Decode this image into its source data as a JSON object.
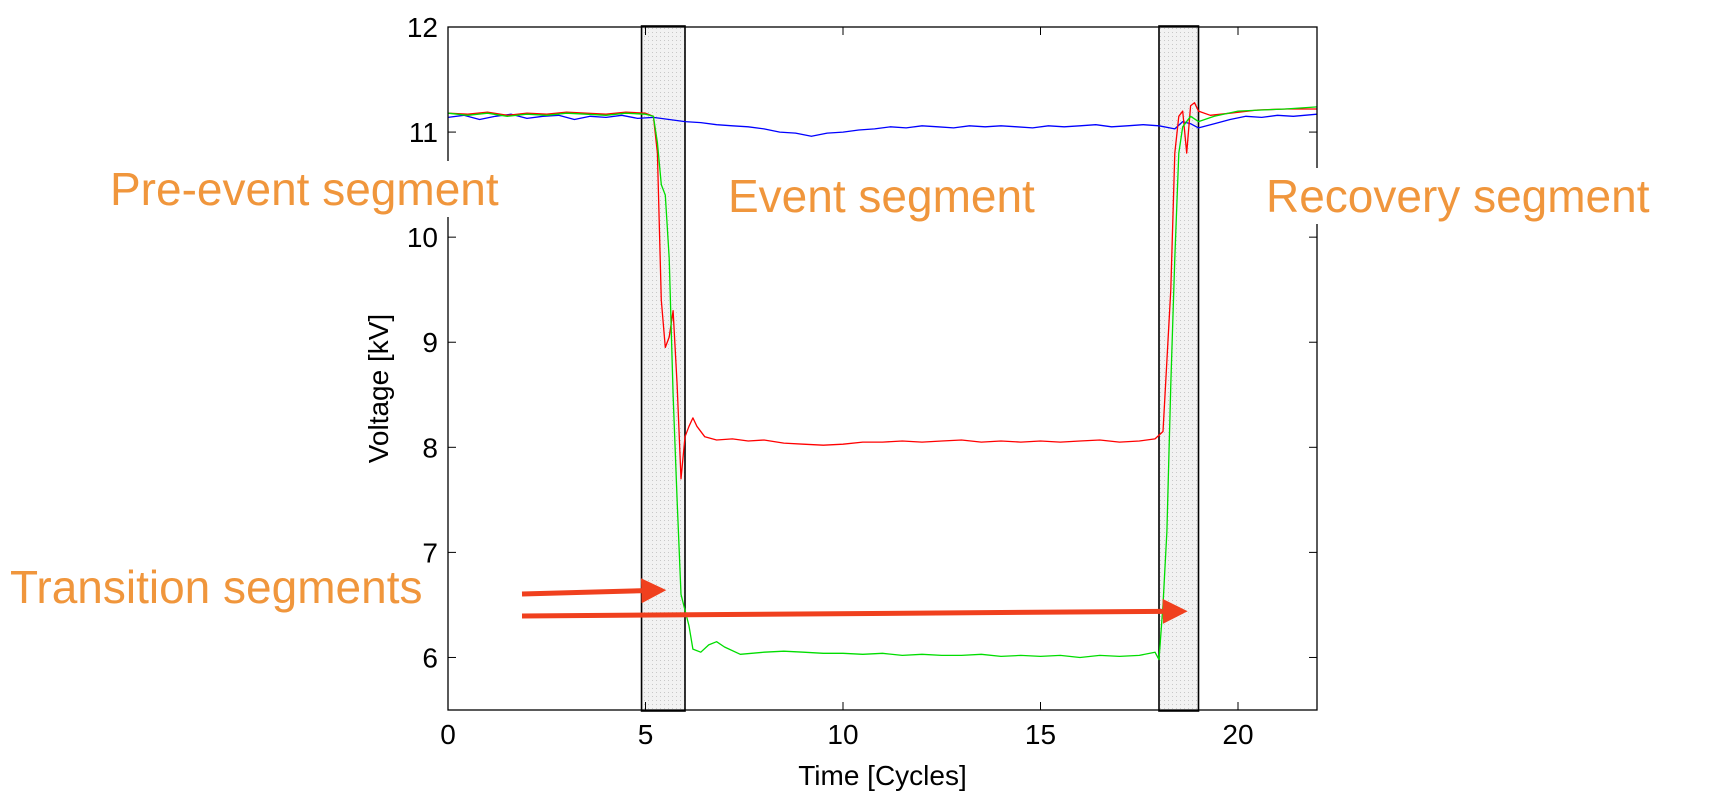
{
  "chart_data": {
    "type": "line",
    "xlabel": "Time [Cycles]",
    "ylabel": "Voltage [kV]",
    "xlim": [
      0,
      22
    ],
    "ylim": [
      5.5,
      12
    ],
    "xticks": [
      0,
      5,
      10,
      15,
      20
    ],
    "yticks": [
      6,
      7,
      8,
      9,
      10,
      11,
      12
    ],
    "grid": false,
    "legend": "none",
    "series": [
      {
        "color": "#0000ff",
        "points": [
          [
            0,
            11.14
          ],
          [
            0.4,
            11.16
          ],
          [
            0.8,
            11.12
          ],
          [
            1.2,
            11.15
          ],
          [
            1.6,
            11.17
          ],
          [
            2.0,
            11.13
          ],
          [
            2.4,
            11.15
          ],
          [
            2.8,
            11.16
          ],
          [
            3.2,
            11.12
          ],
          [
            3.6,
            11.15
          ],
          [
            4.0,
            11.14
          ],
          [
            4.4,
            11.16
          ],
          [
            4.8,
            11.13
          ],
          [
            5.2,
            11.14
          ],
          [
            5.6,
            11.12
          ],
          [
            6.0,
            11.1
          ],
          [
            6.4,
            11.09
          ],
          [
            6.8,
            11.07
          ],
          [
            7.2,
            11.06
          ],
          [
            7.6,
            11.05
          ],
          [
            8.0,
            11.03
          ],
          [
            8.4,
            11.0
          ],
          [
            8.8,
            10.99
          ],
          [
            9.2,
            10.96
          ],
          [
            9.6,
            10.99
          ],
          [
            10.0,
            11.0
          ],
          [
            10.4,
            11.02
          ],
          [
            10.8,
            11.03
          ],
          [
            11.2,
            11.05
          ],
          [
            11.6,
            11.04
          ],
          [
            12.0,
            11.06
          ],
          [
            12.4,
            11.05
          ],
          [
            12.8,
            11.04
          ],
          [
            13.2,
            11.06
          ],
          [
            13.6,
            11.05
          ],
          [
            14.0,
            11.06
          ],
          [
            14.4,
            11.05
          ],
          [
            14.8,
            11.04
          ],
          [
            15.2,
            11.06
          ],
          [
            15.6,
            11.05
          ],
          [
            16.0,
            11.06
          ],
          [
            16.4,
            11.07
          ],
          [
            16.8,
            11.05
          ],
          [
            17.2,
            11.06
          ],
          [
            17.6,
            11.07
          ],
          [
            18.0,
            11.06
          ],
          [
            18.4,
            11.03
          ],
          [
            18.6,
            11.1
          ],
          [
            18.8,
            11.08
          ],
          [
            19.0,
            11.04
          ],
          [
            19.4,
            11.08
          ],
          [
            19.8,
            11.12
          ],
          [
            20.2,
            11.15
          ],
          [
            20.6,
            11.14
          ],
          [
            21.0,
            11.16
          ],
          [
            21.4,
            11.15
          ],
          [
            22.0,
            11.17
          ]
        ]
      },
      {
        "color": "#ff0000",
        "points": [
          [
            0,
            11.18
          ],
          [
            0.5,
            11.17
          ],
          [
            1.0,
            11.19
          ],
          [
            1.5,
            11.16
          ],
          [
            2.0,
            11.18
          ],
          [
            2.5,
            11.17
          ],
          [
            3.0,
            11.19
          ],
          [
            3.5,
            11.18
          ],
          [
            4.0,
            11.17
          ],
          [
            4.5,
            11.19
          ],
          [
            5.0,
            11.18
          ],
          [
            5.2,
            11.15
          ],
          [
            5.3,
            10.8
          ],
          [
            5.4,
            9.4
          ],
          [
            5.5,
            8.95
          ],
          [
            5.6,
            9.05
          ],
          [
            5.7,
            9.3
          ],
          [
            5.8,
            8.6
          ],
          [
            5.9,
            7.7
          ],
          [
            6.0,
            8.1
          ],
          [
            6.1,
            8.2
          ],
          [
            6.2,
            8.28
          ],
          [
            6.3,
            8.2
          ],
          [
            6.5,
            8.1
          ],
          [
            6.8,
            8.07
          ],
          [
            7.2,
            8.08
          ],
          [
            7.6,
            8.06
          ],
          [
            8.0,
            8.07
          ],
          [
            8.5,
            8.04
          ],
          [
            9.0,
            8.03
          ],
          [
            9.5,
            8.02
          ],
          [
            10.0,
            8.03
          ],
          [
            10.5,
            8.05
          ],
          [
            11.0,
            8.05
          ],
          [
            11.5,
            8.06
          ],
          [
            12.0,
            8.05
          ],
          [
            12.5,
            8.06
          ],
          [
            13.0,
            8.07
          ],
          [
            13.5,
            8.05
          ],
          [
            14.0,
            8.06
          ],
          [
            14.5,
            8.05
          ],
          [
            15.0,
            8.06
          ],
          [
            15.5,
            8.05
          ],
          [
            16.0,
            8.06
          ],
          [
            16.5,
            8.07
          ],
          [
            17.0,
            8.05
          ],
          [
            17.5,
            8.06
          ],
          [
            17.9,
            8.08
          ],
          [
            18.1,
            8.15
          ],
          [
            18.3,
            9.5
          ],
          [
            18.4,
            10.8
          ],
          [
            18.5,
            11.15
          ],
          [
            18.6,
            11.2
          ],
          [
            18.7,
            10.8
          ],
          [
            18.8,
            11.25
          ],
          [
            18.9,
            11.28
          ],
          [
            19.0,
            11.2
          ],
          [
            19.3,
            11.16
          ],
          [
            19.8,
            11.18
          ],
          [
            20.5,
            11.21
          ],
          [
            21.2,
            11.22
          ],
          [
            22.0,
            11.22
          ]
        ]
      },
      {
        "color": "#00dd00",
        "points": [
          [
            0,
            11.18
          ],
          [
            0.5,
            11.16
          ],
          [
            1.0,
            11.18
          ],
          [
            1.5,
            11.15
          ],
          [
            2.0,
            11.17
          ],
          [
            2.5,
            11.16
          ],
          [
            3.0,
            11.18
          ],
          [
            3.5,
            11.17
          ],
          [
            4.0,
            11.16
          ],
          [
            4.5,
            11.18
          ],
          [
            5.0,
            11.17
          ],
          [
            5.2,
            11.15
          ],
          [
            5.3,
            10.9
          ],
          [
            5.4,
            10.5
          ],
          [
            5.5,
            10.4
          ],
          [
            5.6,
            9.8
          ],
          [
            5.7,
            8.5
          ],
          [
            5.8,
            7.5
          ],
          [
            5.9,
            6.6
          ],
          [
            6.0,
            6.45
          ],
          [
            6.1,
            6.3
          ],
          [
            6.2,
            6.08
          ],
          [
            6.4,
            6.05
          ],
          [
            6.6,
            6.12
          ],
          [
            6.8,
            6.15
          ],
          [
            7.0,
            6.1
          ],
          [
            7.4,
            6.03
          ],
          [
            8.0,
            6.05
          ],
          [
            8.5,
            6.06
          ],
          [
            9.0,
            6.05
          ],
          [
            9.5,
            6.04
          ],
          [
            10.0,
            6.04
          ],
          [
            10.5,
            6.03
          ],
          [
            11.0,
            6.04
          ],
          [
            11.5,
            6.02
          ],
          [
            12.0,
            6.03
          ],
          [
            12.5,
            6.02
          ],
          [
            13.0,
            6.02
          ],
          [
            13.5,
            6.03
          ],
          [
            14.0,
            6.01
          ],
          [
            14.5,
            6.02
          ],
          [
            15.0,
            6.01
          ],
          [
            15.5,
            6.02
          ],
          [
            16.0,
            6.0
          ],
          [
            16.5,
            6.02
          ],
          [
            17.0,
            6.01
          ],
          [
            17.5,
            6.02
          ],
          [
            17.9,
            6.05
          ],
          [
            18.0,
            5.98
          ],
          [
            18.1,
            6.5
          ],
          [
            18.2,
            7.2
          ],
          [
            18.3,
            8.6
          ],
          [
            18.4,
            9.8
          ],
          [
            18.5,
            10.8
          ],
          [
            18.6,
            11.05
          ],
          [
            18.8,
            11.15
          ],
          [
            19.0,
            11.1
          ],
          [
            19.4,
            11.15
          ],
          [
            20.0,
            11.2
          ],
          [
            20.6,
            11.21
          ],
          [
            21.2,
            11.22
          ],
          [
            22.0,
            11.24
          ]
        ]
      }
    ],
    "shaded_regions": [
      {
        "x0": 4.9,
        "x1": 6.0
      },
      {
        "x0": 18.0,
        "x1": 19.0
      }
    ],
    "annotations": [
      {
        "text": "Pre-event segment",
        "color": "#f0963c"
      },
      {
        "text": "Event segment",
        "color": "#f0963c"
      },
      {
        "text": "Recovery segment",
        "color": "#f0963c"
      },
      {
        "text": "Transition segments",
        "color": "#f0963c"
      }
    ],
    "arrows": [
      {
        "color": "#f0401e",
        "to_x": 5.4,
        "to_y": 6.64
      },
      {
        "color": "#f0401e",
        "to_x": 18.6,
        "to_y": 6.44
      }
    ]
  }
}
